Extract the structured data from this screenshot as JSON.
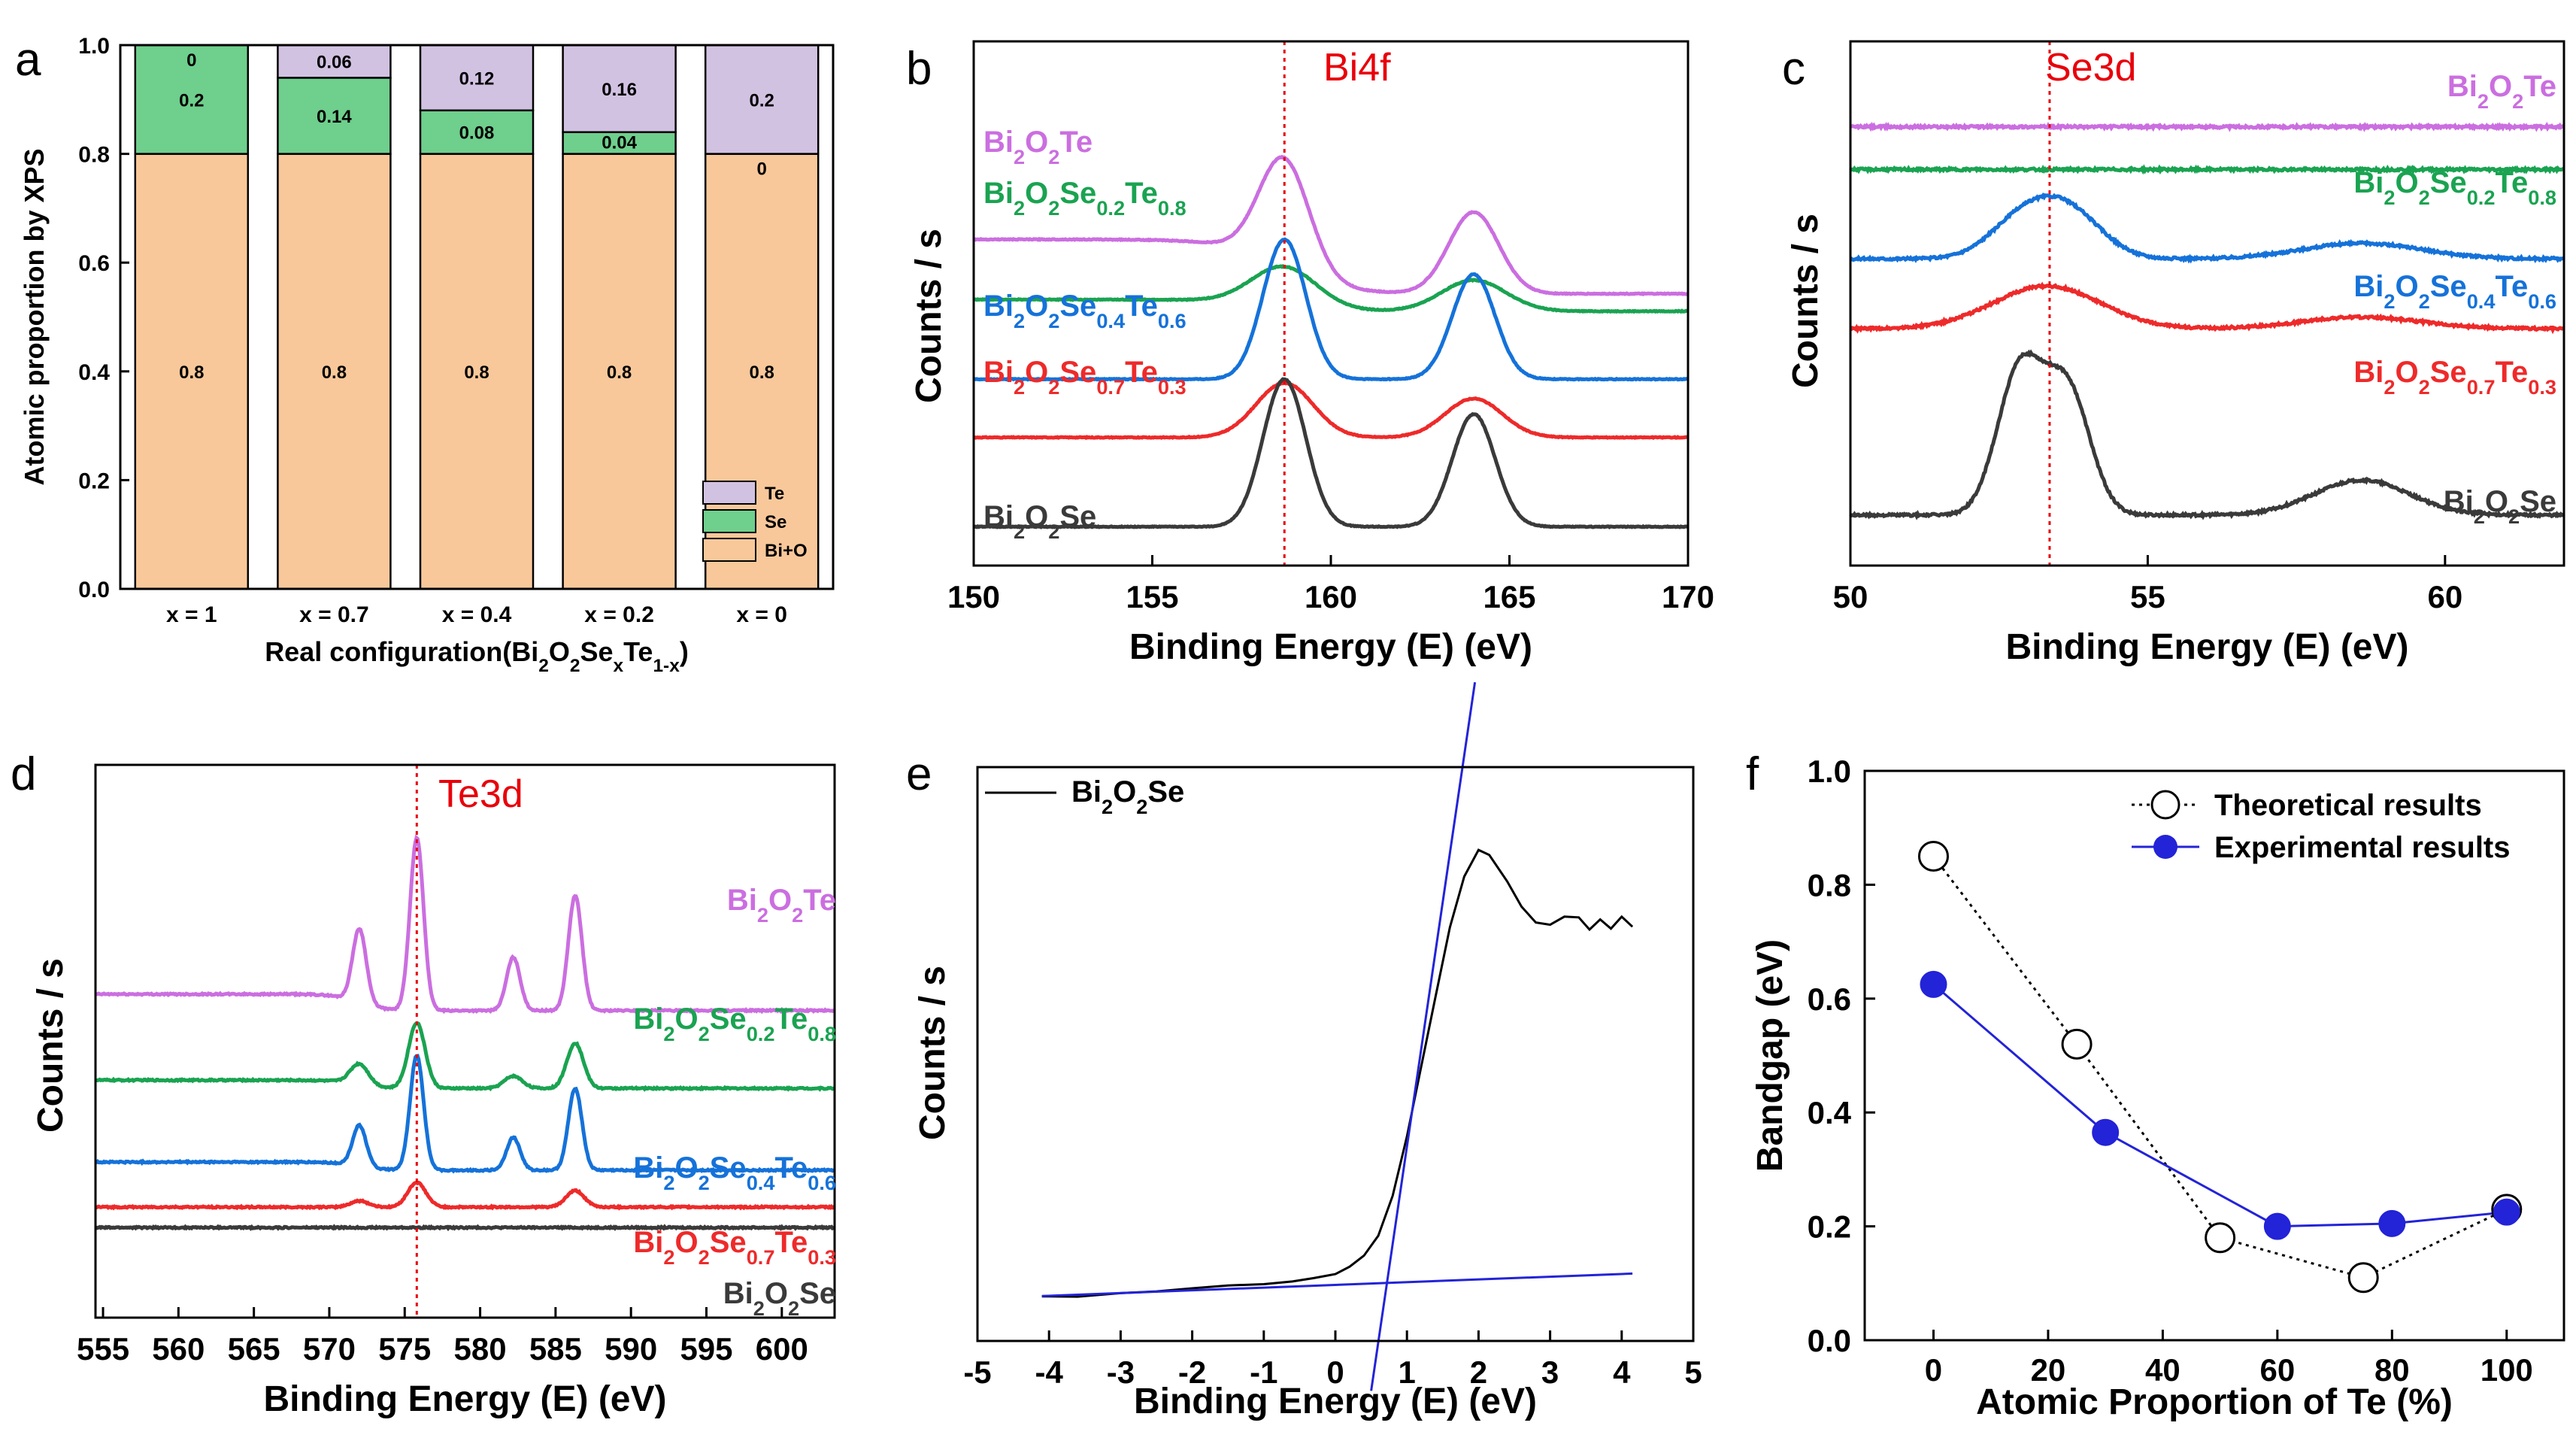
{
  "colors": {
    "te": "#cb6ee0",
    "se02": "#1aa351",
    "se04": "#1572d9",
    "se07": "#ee2a2a",
    "se": "#3a3a3a",
    "bar_te": "#d2c2e2",
    "bar_se": "#6fcf8d",
    "bar_bio": "#f8c89a",
    "fit": "#2323d8",
    "ref": "#e8000b"
  },
  "chart_data": [
    {
      "id": "a",
      "panel_label": "a",
      "type": "bar",
      "stacked": true,
      "categories": [
        "x = 1",
        "x = 0.7",
        "x = 0.4",
        "x = 0.2",
        "x = 0"
      ],
      "series": [
        {
          "name": "Bi+O",
          "values": [
            0.8,
            0.8,
            0.8,
            0.8,
            0.8
          ],
          "labels": [
            "0.8",
            "0.8",
            "0.8",
            "0.8",
            "0.8"
          ]
        },
        {
          "name": "Se",
          "values": [
            0.2,
            0.14,
            0.08,
            0.04,
            0
          ],
          "labels": [
            "0.2",
            "0.14",
            "0.08",
            "0.04",
            "0"
          ]
        },
        {
          "name": "Te",
          "values": [
            0,
            0.06,
            0.12,
            0.16,
            0.2
          ],
          "labels": [
            "0",
            "0.06",
            "0.12",
            "0.16",
            "0.2"
          ]
        }
      ],
      "legend": [
        "Te",
        "Se",
        "Bi+O"
      ],
      "ylabel": "Atomic proportion by XPS",
      "xlabel": {
        "pre": "Real configuration(Bi",
        "s1": "2",
        "mid": "O",
        "s2": "2",
        "mid2": "Se",
        "s3": "x",
        "mid3": "Te",
        "s4": "1-x",
        "post": ")"
      },
      "ylim": [
        0,
        1
      ],
      "yticks": [
        "0.0",
        "0.2",
        "0.4",
        "0.6",
        "0.8",
        "1.0"
      ]
    },
    {
      "id": "b",
      "panel_label": "b",
      "type": "line",
      "title": "Bi4f",
      "xlabel": "Binding Energy (E) (eV)",
      "ylabel": "Counts / s",
      "xlim": [
        150,
        170
      ],
      "xticks": [
        "150",
        "155",
        "160",
        "165",
        "170"
      ],
      "ref_line": 158.7,
      "series": [
        {
          "name": "Bi2O2Te",
          "color": "#cb6ee0",
          "baseline": 0.42,
          "peaks": [
            [
              158.7,
              0.28,
              0.7
            ],
            [
              164.0,
              0.21,
              0.7
            ]
          ],
          "step": 0.14,
          "label": {
            "b": "Bi",
            "s1": "2",
            "o": "O",
            "s2": "2",
            "e": "Te",
            "s3": "",
            "t": "",
            "s4": ""
          }
        },
        {
          "name": "Bi2O2Se0.2Te0.8",
          "color": "#1aa351",
          "baseline": 0.32,
          "peaks": [
            [
              158.7,
              0.1,
              0.9
            ],
            [
              164.0,
              0.08,
              0.9
            ]
          ],
          "step": 0.03,
          "label": {
            "b": "Bi",
            "s1": "2",
            "o": "O",
            "s2": "2",
            "e": "Se",
            "s3": "0.2",
            "t": "Te",
            "s4": "0.8"
          }
        },
        {
          "name": "Bi2O2Se0.4Te0.6",
          "color": "#1572d9",
          "baseline": 0.13,
          "peaks": [
            [
              158.7,
              0.36,
              0.6
            ],
            [
              164.0,
              0.27,
              0.6
            ]
          ],
          "step": 0.0,
          "label": {
            "b": "Bi",
            "s1": "2",
            "o": "O",
            "s2": "2",
            "e": "Se",
            "s3": "0.4",
            "t": "Te",
            "s4": "0.6"
          }
        },
        {
          "name": "Bi2O2Se0.7Te0.3",
          "color": "#ee2a2a",
          "baseline": -0.02,
          "peaks": [
            [
              158.7,
              0.14,
              0.8
            ],
            [
              164.0,
              0.1,
              0.8
            ]
          ],
          "step": 0.0,
          "label": {
            "b": "Bi",
            "s1": "2",
            "o": "O",
            "s2": "2",
            "e": "Se",
            "s3": "0.7",
            "t": "Te",
            "s4": "0.3"
          }
        },
        {
          "name": "Bi2O2Se",
          "color": "#3a3a3a",
          "baseline": -0.25,
          "peaks": [
            [
              158.7,
              0.38,
              0.6
            ],
            [
              164.0,
              0.29,
              0.6
            ]
          ],
          "step": 0.0,
          "label": {
            "b": "Bi",
            "s1": "2",
            "o": "O",
            "s2": "2",
            "e": "Se",
            "s3": "",
            "t": "",
            "s4": ""
          }
        }
      ]
    },
    {
      "id": "c",
      "panel_label": "c",
      "type": "line",
      "title": "Se3d",
      "xlabel": "Binding Energy (E) (eV)",
      "ylabel": "Counts / s",
      "xlim": [
        50,
        62
      ],
      "xticks": [
        "50",
        "55",
        "60"
      ],
      "ref_line": 53.35,
      "series": [
        {
          "name": "Bi2O2Te",
          "color": "#cb6ee0",
          "baseline": 0.78,
          "peaks": [],
          "step": 0.0,
          "label": {
            "b": "Bi",
            "s1": "2",
            "o": "O",
            "s2": "2",
            "e": "Te",
            "s3": "",
            "t": "",
            "s4": ""
          }
        },
        {
          "name": "Bi2O2Se0.2Te0.8",
          "color": "#1aa351",
          "baseline": 0.67,
          "peaks": [],
          "step": 0.0,
          "label": {
            "b": "Bi",
            "s1": "2",
            "o": "O",
            "s2": "2",
            "e": "Se",
            "s3": "0.2",
            "t": "Te",
            "s4": "0.8"
          }
        },
        {
          "name": "Bi2O2Se0.4Te0.6",
          "color": "#1572d9",
          "baseline": 0.44,
          "peaks": [
            [
              52.9,
              0.1,
              0.55
            ],
            [
              53.7,
              0.11,
              0.55
            ],
            [
              58.6,
              0.04,
              1.0
            ]
          ],
          "step": 0.0,
          "label": {
            "b": "Bi",
            "s1": "2",
            "o": "O",
            "s2": "2",
            "e": "Se",
            "s3": "0.4",
            "t": "Te",
            "s4": "0.6"
          }
        },
        {
          "name": "Bi2O2Se0.7Te0.3",
          "color": "#ee2a2a",
          "baseline": 0.26,
          "peaks": [
            [
              53.3,
              0.11,
              0.9
            ],
            [
              58.6,
              0.03,
              1.0
            ]
          ],
          "step": 0.0,
          "label": {
            "b": "Bi",
            "s1": "2",
            "o": "O",
            "s2": "2",
            "e": "Se",
            "s3": "0.7",
            "t": "Te",
            "s4": "0.3"
          }
        },
        {
          "name": "Bi2O2Se",
          "color": "#3a3a3a",
          "baseline": -0.22,
          "peaks": [
            [
              52.85,
              0.37,
              0.38
            ],
            [
              53.65,
              0.32,
              0.38
            ],
            [
              58.6,
              0.09,
              0.8
            ]
          ],
          "step": 0.0,
          "label": {
            "b": "Bi",
            "s1": "2",
            "o": "O",
            "s2": "2",
            "e": "Se",
            "s3": "",
            "t": "",
            "s4": ""
          }
        }
      ]
    },
    {
      "id": "d",
      "panel_label": "d",
      "type": "line",
      "title": "Te3d",
      "xlabel": "Binding Energy (E) (eV)",
      "ylabel": "Counts / s",
      "xlim": [
        554.5,
        603.5
      ],
      "xticks": [
        "555",
        "560",
        "565",
        "570",
        "575",
        "580",
        "585",
        "590",
        "595",
        "600"
      ],
      "ref_line": 575.8,
      "series": [
        {
          "name": "Bi2O2Te",
          "color": "#cb6ee0",
          "baseline": 0.42,
          "peaks": [
            [
              572.0,
              0.18,
              0.45
            ],
            [
              575.8,
              0.42,
              0.45
            ],
            [
              582.2,
              0.13,
              0.45
            ],
            [
              586.3,
              0.28,
              0.45
            ]
          ],
          "step": 0.04,
          "label": {
            "b": "Bi",
            "s1": "2",
            "o": "O",
            "s2": "2",
            "e": "Te",
            "s3": "",
            "t": "",
            "s4": ""
          }
        },
        {
          "name": "Bi2O2Se0.2Te0.8",
          "color": "#1aa351",
          "baseline": 0.22,
          "peaks": [
            [
              572.0,
              0.05,
              0.6
            ],
            [
              575.8,
              0.16,
              0.55
            ],
            [
              582.2,
              0.03,
              0.6
            ],
            [
              586.3,
              0.11,
              0.55
            ]
          ],
          "step": 0.02,
          "label": {
            "b": "Bi",
            "s1": "2",
            "o": "O",
            "s2": "2",
            "e": "Se",
            "s3": "0.2",
            "t": "Te",
            "s4": "0.8"
          }
        },
        {
          "name": "Bi2O2Se0.4Te0.6",
          "color": "#1572d9",
          "baseline": 0.02,
          "peaks": [
            [
              572.0,
              0.1,
              0.45
            ],
            [
              575.8,
              0.28,
              0.45
            ],
            [
              582.2,
              0.08,
              0.45
            ],
            [
              586.3,
              0.2,
              0.45
            ]
          ],
          "step": 0.02,
          "label": {
            "b": "Bi",
            "s1": "2",
            "o": "O",
            "s2": "2",
            "e": "Se",
            "s3": "0.4",
            "t": "Te",
            "s4": "0.6"
          }
        },
        {
          "name": "Bi2O2Se0.7Te0.3",
          "color": "#ee2a2a",
          "baseline": -0.08,
          "peaks": [
            [
              572.0,
              0.015,
              0.6
            ],
            [
              575.8,
              0.06,
              0.6
            ],
            [
              586.3,
              0.04,
              0.6
            ]
          ],
          "step": 0.0,
          "label": {
            "b": "Bi",
            "s1": "2",
            "o": "O",
            "s2": "2",
            "e": "Se",
            "s3": "0.7",
            "t": "Te",
            "s4": "0.3"
          }
        },
        {
          "name": "Bi2O2Se",
          "color": "#3a3a3a",
          "baseline": -0.13,
          "peaks": [],
          "step": 0.0,
          "label": {
            "b": "Bi",
            "s1": "2",
            "o": "O",
            "s2": "2",
            "e": "Se",
            "s3": "",
            "t": "",
            "s4": ""
          }
        }
      ]
    },
    {
      "id": "e",
      "panel_label": "e",
      "type": "line",
      "xlabel": "Binding Energy (E) (eV)",
      "ylabel": "Counts / s",
      "xlim": [
        -5,
        5
      ],
      "ylim": [
        0,
        1
      ],
      "xticks": [
        "-5",
        "-4",
        "-3",
        "-2",
        "-1",
        "0",
        "1",
        "2",
        "3",
        "4",
        "5"
      ],
      "legend": {
        "b": "Bi",
        "s1": "2",
        "o": "O",
        "s2": "2",
        "e": "Se"
      },
      "series": [
        {
          "name": "Bi2O2Se",
          "color": "#000000",
          "x": [
            -4.1,
            -3.6,
            -3,
            -2.5,
            -2,
            -1.5,
            -1,
            -0.6,
            -0.3,
            0,
            0.2,
            0.4,
            0.6,
            0.8,
            1.0,
            1.2,
            1.4,
            1.6,
            1.8,
            2.0,
            2.15,
            2.4,
            2.6,
            2.8,
            3.0,
            3.2,
            3.4,
            3.55,
            3.7,
            3.85,
            4.0,
            4.15
          ],
          "y": [
            0.04,
            0.04,
            0.045,
            0.05,
            0.055,
            0.06,
            0.065,
            0.07,
            0.075,
            0.085,
            0.1,
            0.12,
            0.16,
            0.24,
            0.36,
            0.5,
            0.64,
            0.78,
            0.88,
            0.935,
            0.925,
            0.87,
            0.82,
            0.79,
            0.785,
            0.8,
            0.8,
            0.775,
            0.795,
            0.775,
            0.8,
            0.78
          ]
        },
        {
          "name": "fit-steep",
          "color": "#2323d8",
          "x": [
            0.5,
            1.95
          ],
          "y": [
            -0.15,
            1.27
          ]
        },
        {
          "name": "fit-baseline",
          "color": "#2323d8",
          "x": [
            -4.1,
            4.15
          ],
          "y": [
            0.04,
            0.085
          ]
        }
      ]
    },
    {
      "id": "f",
      "panel_label": "f",
      "type": "scatter",
      "xlabel": "Atomic Proportion of Te (%)",
      "ylabel": "Bandgap  (eV)",
      "xlim": [
        -12,
        110
      ],
      "ylim": [
        0,
        1
      ],
      "xticks": [
        "0",
        "20",
        "40",
        "60",
        "80",
        "100"
      ],
      "yticks": [
        "0.0",
        "0.2",
        "0.4",
        "0.6",
        "0.8",
        "1.0"
      ],
      "series": [
        {
          "name": "Theoretical results",
          "x": [
            0,
            25,
            50,
            75,
            100
          ],
          "y": [
            0.85,
            0.52,
            0.18,
            0.11,
            0.23
          ]
        },
        {
          "name": "Experimental results",
          "x": [
            0,
            30,
            60,
            80,
            100
          ],
          "y": [
            0.625,
            0.365,
            0.2,
            0.205,
            0.225
          ]
        }
      ]
    }
  ]
}
